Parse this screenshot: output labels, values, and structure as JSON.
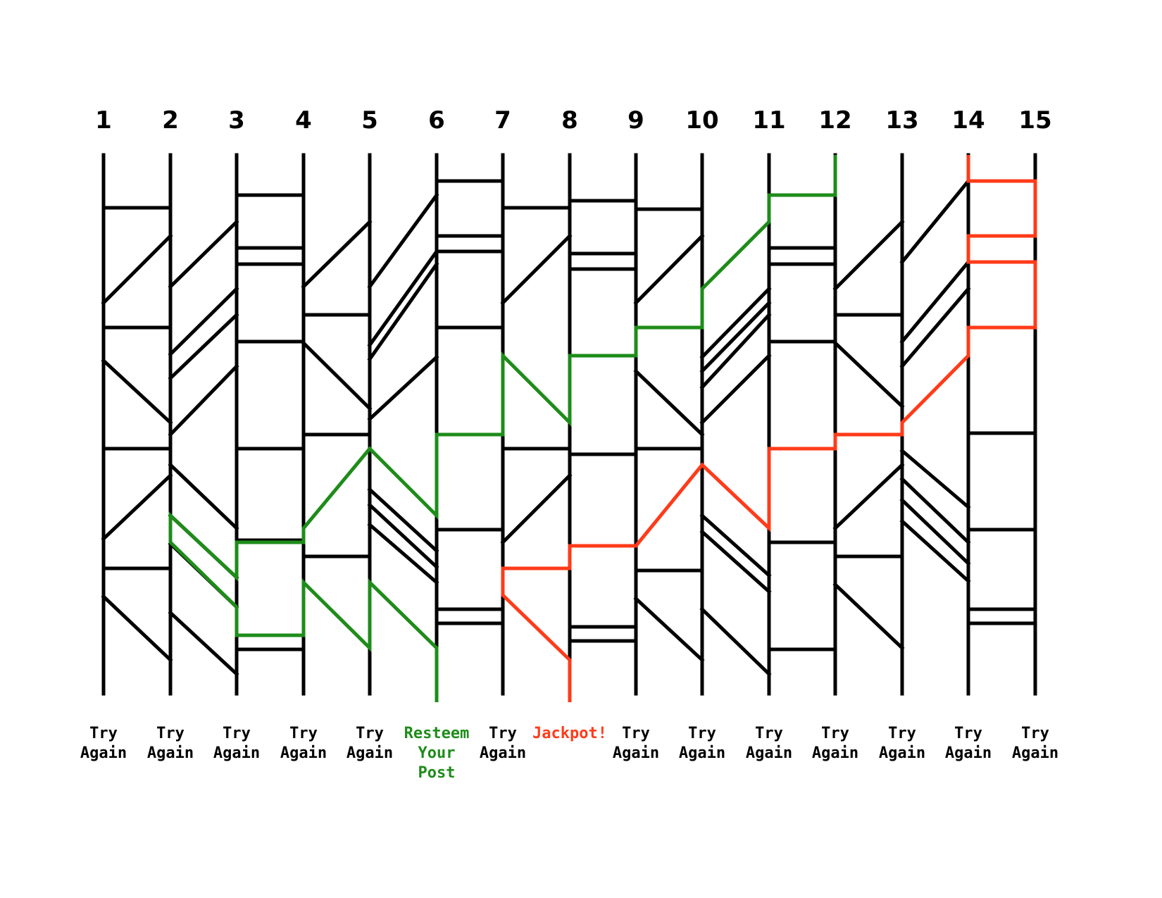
{
  "columns": [
    {
      "number": "1",
      "result": [
        "Try",
        "Again"
      ]
    },
    {
      "number": "2",
      "result": [
        "Try",
        "Again"
      ]
    },
    {
      "number": "3",
      "result": [
        "Try",
        "Again"
      ]
    },
    {
      "number": "4",
      "result": [
        "Try",
        "Again"
      ]
    },
    {
      "number": "5",
      "result": [
        "Try",
        "Again"
      ]
    },
    {
      "number": "6",
      "result": [
        "Resteem",
        "Your",
        "Post"
      ],
      "highlight": "green"
    },
    {
      "number": "7",
      "result": [
        "Try",
        "Again"
      ]
    },
    {
      "number": "8",
      "result": [
        "Jackpot!"
      ],
      "highlight": "red"
    },
    {
      "number": "9",
      "result": [
        "Try",
        "Again"
      ]
    },
    {
      "number": "10",
      "result": [
        "Try",
        "Again"
      ]
    },
    {
      "number": "11",
      "result": [
        "Try",
        "Again"
      ]
    },
    {
      "number": "12",
      "result": [
        "Try",
        "Again"
      ]
    },
    {
      "number": "13",
      "result": [
        "Try",
        "Again"
      ]
    },
    {
      "number": "14",
      "result": [
        "Try",
        "Again"
      ]
    },
    {
      "number": "15",
      "result": [
        "Try",
        "Again"
      ]
    }
  ],
  "colors": {
    "rail": "#000000",
    "green_path": "#1e8c1a",
    "red_path": "#ff3b1a",
    "text": "#000000"
  },
  "paths": {
    "green": {
      "from_column": "12",
      "to_column": "6"
    },
    "red": {
      "from_column": "14",
      "to_column": "8"
    }
  }
}
